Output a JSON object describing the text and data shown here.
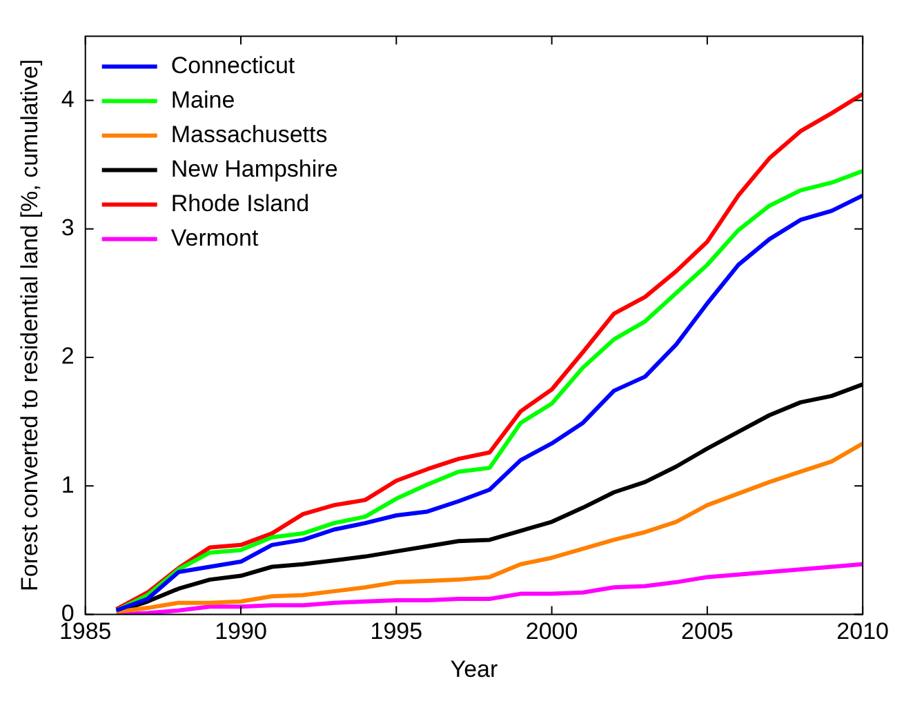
{
  "chart_data": {
    "type": "line",
    "xlabel": "Year",
    "ylabel": "Forest converted to residential land [%, cumulative]",
    "x": [
      1986,
      1987,
      1988,
      1989,
      1990,
      1991,
      1992,
      1993,
      1994,
      1995,
      1996,
      1997,
      1998,
      1999,
      2000,
      2001,
      2002,
      2003,
      2004,
      2005,
      2006,
      2007,
      2008,
      2009,
      2010
    ],
    "series": [
      {
        "name": "Connecticut",
        "color": "#0000ff",
        "values": [
          0.03,
          0.12,
          0.33,
          0.37,
          0.41,
          0.54,
          0.58,
          0.66,
          0.71,
          0.77,
          0.8,
          0.88,
          0.97,
          1.2,
          1.33,
          1.49,
          1.74,
          1.85,
          2.1,
          2.42,
          2.72,
          2.92,
          3.07,
          3.14,
          3.26
        ]
      },
      {
        "name": "Maine",
        "color": "#00ff00",
        "values": [
          0.03,
          0.15,
          0.35,
          0.48,
          0.5,
          0.6,
          0.63,
          0.71,
          0.76,
          0.9,
          1.01,
          1.11,
          1.14,
          1.49,
          1.64,
          1.92,
          2.14,
          2.28,
          2.5,
          2.72,
          2.99,
          3.18,
          3.3,
          3.36,
          3.45
        ]
      },
      {
        "name": "Massachusetts",
        "color": "#ff8000",
        "values": [
          0.02,
          0.05,
          0.09,
          0.09,
          0.1,
          0.14,
          0.15,
          0.18,
          0.21,
          0.25,
          0.26,
          0.27,
          0.29,
          0.39,
          0.44,
          0.51,
          0.58,
          0.64,
          0.72,
          0.85,
          0.94,
          1.03,
          1.11,
          1.19,
          1.33
        ]
      },
      {
        "name": "New Hampshire",
        "color": "#000000",
        "values": [
          0.02,
          0.1,
          0.2,
          0.27,
          0.3,
          0.37,
          0.39,
          0.42,
          0.45,
          0.49,
          0.53,
          0.57,
          0.58,
          0.65,
          0.72,
          0.83,
          0.95,
          1.03,
          1.15,
          1.29,
          1.42,
          1.55,
          1.65,
          1.7,
          1.79
        ]
      },
      {
        "name": "Rhode Island",
        "color": "#ff0000",
        "values": [
          0.04,
          0.17,
          0.36,
          0.52,
          0.54,
          0.63,
          0.78,
          0.85,
          0.89,
          1.04,
          1.13,
          1.21,
          1.26,
          1.58,
          1.75,
          2.04,
          2.34,
          2.47,
          2.67,
          2.9,
          3.26,
          3.55,
          3.76,
          3.9,
          4.05
        ]
      },
      {
        "name": "Vermont",
        "color": "#ff00ff",
        "values": [
          0,
          0.01,
          0.03,
          0.06,
          0.06,
          0.07,
          0.07,
          0.09,
          0.1,
          0.11,
          0.11,
          0.12,
          0.12,
          0.16,
          0.16,
          0.17,
          0.21,
          0.22,
          0.25,
          0.29,
          0.31,
          0.33,
          0.35,
          0.37,
          0.39
        ]
      }
    ],
    "xlim": [
      1985,
      2010
    ],
    "xticks": [
      1985,
      1990,
      1995,
      2000,
      2005,
      2010
    ],
    "ylim": [
      0,
      4.5
    ],
    "yticks": [
      0,
      1,
      2,
      3,
      4
    ],
    "grid": false,
    "legend": "top left",
    "marker": "none",
    "line_style": "solid"
  }
}
